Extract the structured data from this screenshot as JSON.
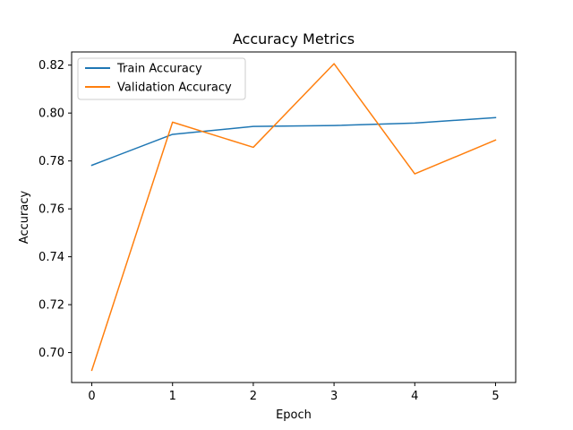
{
  "chart_data": {
    "type": "line",
    "title": "Accuracy Metrics",
    "xlabel": "Epoch",
    "ylabel": "Accuracy",
    "x": [
      0,
      1,
      2,
      3,
      4,
      5
    ],
    "xticks": [
      "0",
      "1",
      "2",
      "3",
      "4",
      "5"
    ],
    "yticks": [
      "0.70",
      "0.72",
      "0.74",
      "0.76",
      "0.78",
      "0.80",
      "0.82"
    ],
    "xlim": [
      -0.25,
      5.25
    ],
    "ylim": [
      0.6875,
      0.8255
    ],
    "grid": false,
    "legend_position": "top-left",
    "series": [
      {
        "name": "Train Accuracy",
        "color": "#1f77b4",
        "values": [
          0.7782,
          0.7911,
          0.7944,
          0.7948,
          0.7958,
          0.7981
        ]
      },
      {
        "name": "Validation Accuracy",
        "color": "#ff7f0e",
        "values": [
          0.6926,
          0.7962,
          0.7857,
          0.8206,
          0.7746,
          0.7887
        ]
      }
    ]
  }
}
